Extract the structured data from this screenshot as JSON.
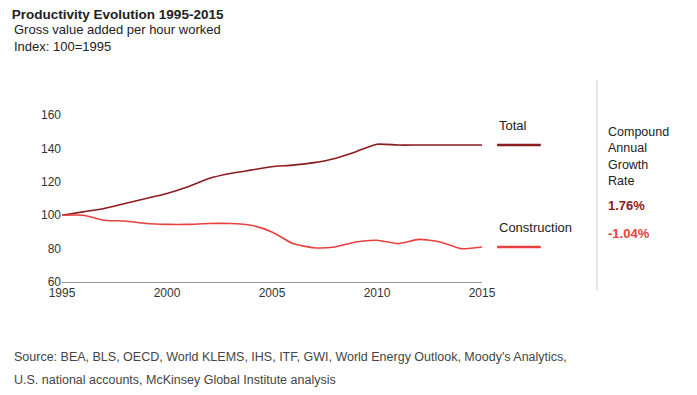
{
  "chart_data": {
    "type": "line",
    "title": "Productivity Evolution 1995-2015",
    "subtitle": [
      "Gross value added per hour worked",
      "Index: 100=1995"
    ],
    "x": [
      1995,
      1996,
      1997,
      1998,
      1999,
      2000,
      2001,
      2002,
      2003,
      2004,
      2005,
      2006,
      2007,
      2008,
      2009,
      2010,
      2011,
      2012,
      2013,
      2014,
      2015
    ],
    "series": [
      {
        "name": "Total",
        "color": "#8b1c1f",
        "values": [
          100,
          102,
          104,
          107,
          110,
          113,
          117,
          122,
          125,
          127,
          129,
          130,
          131.5,
          134,
          138,
          142.5,
          142,
          142,
          142,
          142,
          142
        ],
        "cagr": {
          "value": 1.76,
          "label": "1.76%"
        }
      },
      {
        "name": "Construction",
        "color": "#e8413f",
        "values": [
          100,
          100,
          97,
          96.5,
          95,
          94.5,
          94.5,
          95,
          95,
          94,
          90,
          83,
          80.5,
          81,
          84,
          85,
          83,
          85.5,
          84,
          80,
          81
        ],
        "cagr": {
          "value": -1.04,
          "label": "-1.04%"
        }
      }
    ],
    "annotations": [
      "Compound Annual Growth Rate"
    ],
    "source": [
      "Source: BEA, BLS, OECD, World KLEMS, IHS, ITF, GWI, World Energy Outlook, Moody's Analytics,",
      "U.S. national accounts, McKinsey Global Institute analysis"
    ],
    "xlim": [
      1995,
      2015
    ],
    "xticks": [
      1995,
      2000,
      2005,
      2010,
      2015
    ],
    "ylim": [
      60,
      160
    ],
    "yticks": [
      60,
      80,
      100,
      120,
      140,
      160
    ],
    "grid": false
  }
}
